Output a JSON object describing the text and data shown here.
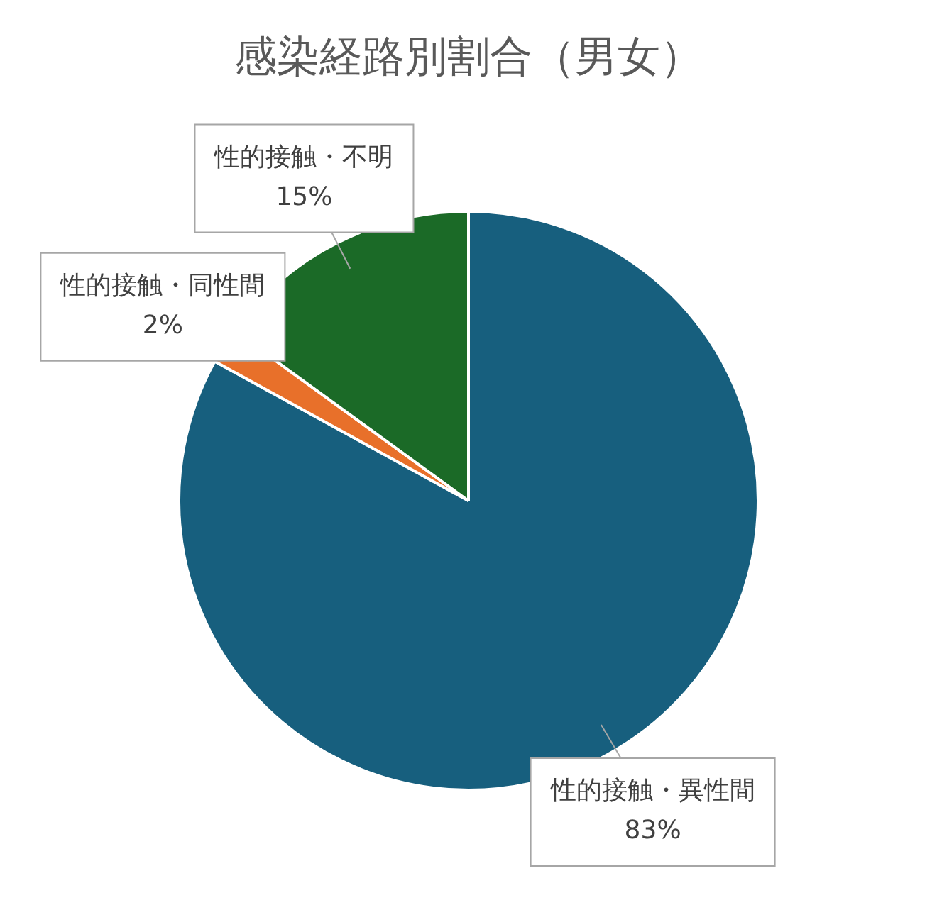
{
  "chart_data": {
    "type": "pie",
    "title": "感染経路別割合（男女）",
    "categories": [
      "性的接触・異性間",
      "性的接触・同性間",
      "性的接触・不明"
    ],
    "values": [
      83,
      2,
      15
    ],
    "value_labels": [
      "83%",
      "2%",
      "15%"
    ],
    "colors": [
      "#175f7e",
      "#e8702a",
      "#1b6a27"
    ],
    "legend": false
  }
}
